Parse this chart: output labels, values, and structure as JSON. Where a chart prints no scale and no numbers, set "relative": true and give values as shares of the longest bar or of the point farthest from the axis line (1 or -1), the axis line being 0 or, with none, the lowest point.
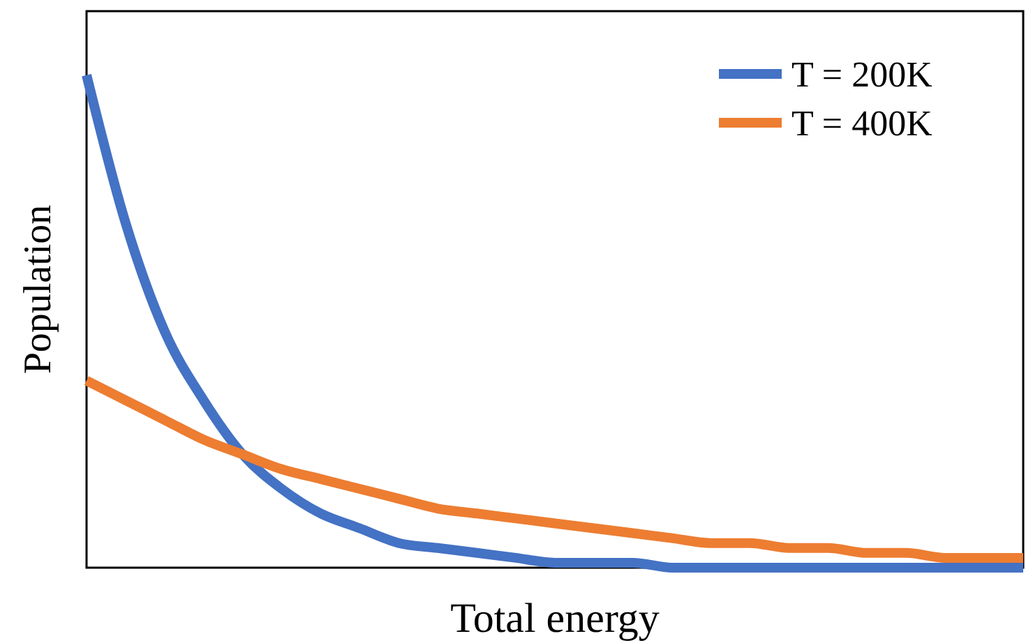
{
  "chart_data": {
    "type": "line",
    "relative": true,
    "xlabel": "Total energy",
    "ylabel": "Population",
    "legend": "top right",
    "marker": "none",
    "line_style": "solid",
    "grid": false,
    "categories": [
      null,
      null,
      null,
      null,
      null,
      null,
      null,
      null,
      null,
      null,
      null,
      null,
      null,
      null,
      null,
      null,
      null,
      null,
      null,
      null,
      null,
      null,
      null,
      null,
      null
    ],
    "series": [
      {
        "name": "T = 200K",
        "color": "#4472c4",
        "values": [
          1.0,
          0.7,
          0.48,
          0.34,
          0.23,
          0.16,
          0.11,
          0.08,
          0.05,
          0.04,
          0.03,
          0.02,
          0.01,
          0.01,
          0.01,
          0.0,
          0.0,
          0.0,
          0.0,
          0.0,
          0.0,
          0.0,
          0.0,
          0.0,
          0.0
        ]
      },
      {
        "name": "T = 400K",
        "color": "#ed7d31",
        "values": [
          0.38,
          0.34,
          0.3,
          0.26,
          0.23,
          0.2,
          0.18,
          0.16,
          0.14,
          0.12,
          0.11,
          0.1,
          0.09,
          0.08,
          0.07,
          0.06,
          0.05,
          0.05,
          0.04,
          0.04,
          0.03,
          0.03,
          0.02,
          0.02,
          0.02
        ]
      }
    ]
  }
}
